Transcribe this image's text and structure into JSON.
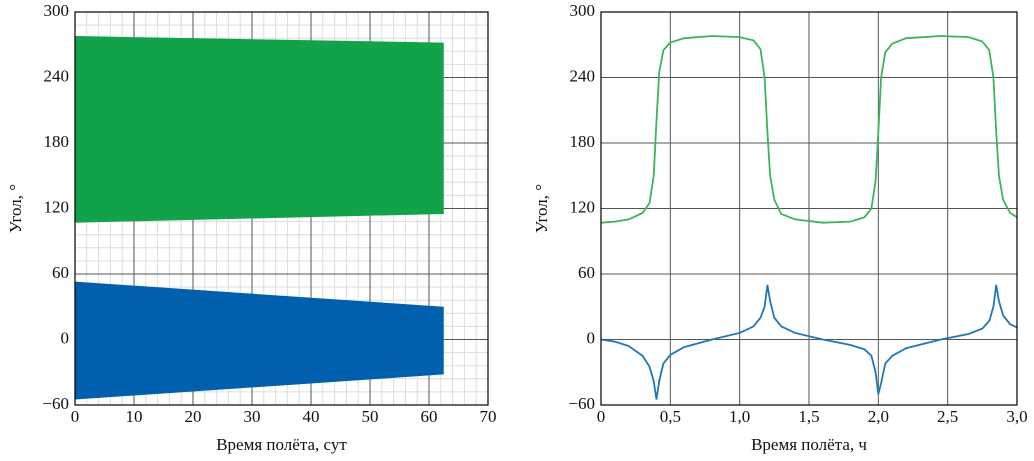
{
  "chart_data": [
    {
      "type": "area",
      "xlabel": "Время полёта, сут",
      "ylabel": "Угол, °",
      "xlim": [
        0,
        70
      ],
      "ylim": [
        -60,
        300
      ],
      "xticks": [
        0,
        10,
        20,
        30,
        40,
        50,
        60,
        70
      ],
      "yticks": [
        {
          "value": -60,
          "label": "−60"
        },
        0,
        60,
        120,
        180,
        240,
        300
      ],
      "grid": true,
      "minor_grid": true,
      "minor_divisions": 5,
      "series": [
        {
          "color": "#12a24a",
          "x": [
            0,
            62.5
          ],
          "upper": [
            278,
            272
          ],
          "lower": [
            107,
            115
          ]
        },
        {
          "color": "#0060ad",
          "x": [
            0,
            62.5
          ],
          "upper": [
            53,
            30
          ],
          "lower": [
            -55,
            -32
          ]
        }
      ]
    },
    {
      "type": "line",
      "xlabel": "Время полёта, ч",
      "ylabel": "Угол, °",
      "xlim": [
        0,
        3
      ],
      "ylim": [
        -60,
        300
      ],
      "xticks": [
        0,
        {
          "value": 0.5,
          "label": "0,5"
        },
        {
          "value": 1,
          "label": "1,0"
        },
        {
          "value": 1.5,
          "label": "1,5"
        },
        {
          "value": 2,
          "label": "2,0"
        },
        {
          "value": 2.5,
          "label": "2,5"
        },
        {
          "value": 3,
          "label": "3,0"
        }
      ],
      "yticks": [
        {
          "value": -60,
          "label": "−60"
        },
        0,
        60,
        120,
        180,
        240,
        300
      ],
      "grid": true,
      "minor_grid": false,
      "x": [
        0,
        0.1,
        0.2,
        0.3,
        0.35,
        0.38,
        0.4,
        0.42,
        0.45,
        0.5,
        0.6,
        0.8,
        1.0,
        1.1,
        1.15,
        1.18,
        1.2,
        1.22,
        1.25,
        1.3,
        1.4,
        1.6,
        1.8,
        1.9,
        1.95,
        1.98,
        2.0,
        2.02,
        2.05,
        2.1,
        2.2,
        2.45,
        2.65,
        2.75,
        2.8,
        2.83,
        2.85,
        2.87,
        2.9,
        2.95,
        3.0
      ],
      "series": [
        {
          "color": "#3cb45a",
          "values": [
            107,
            108,
            110,
            116,
            125,
            150,
            200,
            245,
            265,
            272,
            276,
            278,
            277,
            274,
            266,
            240,
            190,
            150,
            128,
            115,
            110,
            107,
            108,
            112,
            120,
            145,
            190,
            240,
            263,
            271,
            276,
            278,
            277,
            273,
            265,
            240,
            190,
            150,
            128,
            116,
            112
          ]
        },
        {
          "color": "#1f77b4",
          "values": [
            0,
            -2,
            -6,
            -15,
            -25,
            -38,
            -55,
            -38,
            -22,
            -14,
            -7,
            0,
            6,
            12,
            20,
            30,
            50,
            35,
            20,
            12,
            6,
            0,
            -5,
            -9,
            -15,
            -30,
            -50,
            -40,
            -22,
            -15,
            -8,
            0,
            5,
            10,
            17,
            30,
            50,
            35,
            22,
            14,
            11
          ]
        }
      ]
    }
  ]
}
